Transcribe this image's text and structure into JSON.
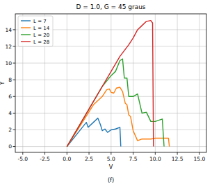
{
  "chart_data": {
    "type": "line",
    "title": "D = 1.0, G = 45 graus",
    "x_label": "V",
    "y_label": "Y",
    "caption": "(f)",
    "xlim": [
      -5.85,
      15.8
    ],
    "ylim": [
      -0.7,
      15.9
    ],
    "xticks": [
      {
        "value": -5,
        "label": "-5.0"
      },
      {
        "value": -2.5,
        "label": "-2.5"
      },
      {
        "value": 0,
        "label": "0.0"
      },
      {
        "value": 2.5,
        "label": "2.5"
      },
      {
        "value": 5,
        "label": "5.0"
      },
      {
        "value": 7.5,
        "label": "7.5"
      },
      {
        "value": 10,
        "label": "10.0"
      },
      {
        "value": 12.5,
        "label": "12.5"
      },
      {
        "value": 15,
        "label": "15.0"
      }
    ],
    "yticks": [
      0,
      2,
      4,
      6,
      8,
      10,
      12,
      14
    ],
    "grid": true,
    "legend": "upper-left",
    "series": [
      {
        "name": "L = 7",
        "color": "#1f77b4",
        "x": [
          0,
          2.2,
          2.4,
          3.0,
          3.5,
          3.8,
          4.0,
          4.3,
          4.6,
          5.0,
          5.5,
          6.0,
          6.1
        ],
        "values": [
          0,
          2.9,
          2.3,
          2.9,
          3.4,
          2.6,
          1.9,
          2.1,
          1.7,
          2.0,
          2.1,
          2.3,
          0
        ]
      },
      {
        "name": "L = 14",
        "color": "#ff7f0e",
        "x": [
          0,
          3.0,
          3.5,
          4.0,
          4.5,
          4.8,
          5.0,
          5.3,
          5.6,
          6.0,
          6.3,
          6.6,
          6.8,
          7.0,
          7.2,
          7.5,
          8.0,
          8.5,
          9.5,
          10.0,
          11.5,
          11.6
        ],
        "values": [
          0,
          5.0,
          5.5,
          6.0,
          6.8,
          6.9,
          6.5,
          6.4,
          7.0,
          7.1,
          6.6,
          5.2,
          5.0,
          3.8,
          3.6,
          1.9,
          0.7,
          0.9,
          0.9,
          1.0,
          1.0,
          0
        ]
      },
      {
        "name": "L = 20",
        "color": "#2ca02c",
        "x": [
          0,
          4.0,
          5.0,
          5.5,
          6.0,
          6.3,
          6.5,
          6.8,
          7.0,
          7.5,
          8.0,
          8.5,
          9.0,
          9.5,
          10.0,
          10.8,
          11.0
        ],
        "values": [
          0,
          7.2,
          8.5,
          9.0,
          10.3,
          10.5,
          8.2,
          8.2,
          6.0,
          6.0,
          6.3,
          4.0,
          4.1,
          3.0,
          3.0,
          3.3,
          0
        ]
      },
      {
        "name": "L = 28",
        "color": "#d62728",
        "x": [
          0,
          5.0,
          6.0,
          7.0,
          7.5,
          8.0,
          8.5,
          9.0,
          9.5,
          9.7,
          9.8
        ],
        "values": [
          0,
          9.0,
          10.8,
          12.2,
          13.0,
          14.0,
          14.5,
          15.0,
          15.1,
          14.8,
          0
        ]
      }
    ]
  }
}
